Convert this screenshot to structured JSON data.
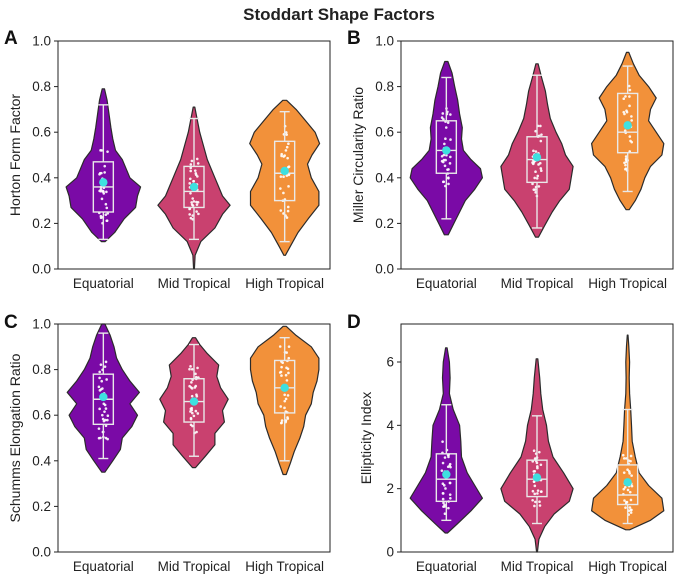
{
  "colors": {
    "Equatorial": "#7a0aa6",
    "Mid Tropical": "#c9416f",
    "High Tropical": "#f2913a",
    "mean": "#3ee0e0",
    "box": "#e9e9e9"
  },
  "chart_data": {
    "type": "violin",
    "title": "Stoddart Shape Factors",
    "panels": [
      {
        "letter": "A",
        "ylabel": "Horton Form Factor",
        "ylim": [
          0.0,
          1.0
        ],
        "yticks": [
          0.0,
          0.2,
          0.4,
          0.6,
          0.8,
          1.0
        ],
        "ytick_labels": [
          "0.0",
          "0.2",
          "0.4",
          "0.6",
          "0.8",
          "1.0"
        ],
        "categories": [
          "Equatorial",
          "Mid Tropical",
          "High Tropical"
        ],
        "series": [
          {
            "name": "Equatorial",
            "mean": 0.38,
            "q1": 0.25,
            "median": 0.36,
            "q3": 0.47,
            "whisker_low": 0.13,
            "whisker_high": 0.72,
            "violin_min": 0.12,
            "violin_max": 0.79,
            "profile": [
              [
                0.12,
                0.05
              ],
              [
                0.16,
                0.3
              ],
              [
                0.22,
                0.55
              ],
              [
                0.27,
                0.85
              ],
              [
                0.32,
                0.9
              ],
              [
                0.36,
                0.98
              ],
              [
                0.4,
                0.7
              ],
              [
                0.44,
                0.6
              ],
              [
                0.48,
                0.5
              ],
              [
                0.52,
                0.32
              ],
              [
                0.57,
                0.25
              ],
              [
                0.62,
                0.2
              ],
              [
                0.68,
                0.15
              ],
              [
                0.74,
                0.1
              ],
              [
                0.79,
                0.03
              ]
            ]
          },
          {
            "name": "Mid Tropical",
            "mean": 0.36,
            "q1": 0.27,
            "median": 0.34,
            "q3": 0.45,
            "whisker_low": 0.13,
            "whisker_high": 0.66,
            "violin_min": 0.0,
            "violin_max": 0.71,
            "profile": [
              [
                0.0,
                0.01
              ],
              [
                0.06,
                0.03
              ],
              [
                0.12,
                0.18
              ],
              [
                0.18,
                0.55
              ],
              [
                0.24,
                0.75
              ],
              [
                0.28,
                0.95
              ],
              [
                0.32,
                0.75
              ],
              [
                0.36,
                0.65
              ],
              [
                0.4,
                0.55
              ],
              [
                0.44,
                0.45
              ],
              [
                0.48,
                0.35
              ],
              [
                0.54,
                0.25
              ],
              [
                0.6,
                0.15
              ],
              [
                0.66,
                0.08
              ],
              [
                0.71,
                0.02
              ]
            ]
          },
          {
            "name": "High Tropical",
            "mean": 0.43,
            "q1": 0.3,
            "median": 0.42,
            "q3": 0.56,
            "whisker_low": 0.12,
            "whisker_high": 0.69,
            "violin_min": 0.06,
            "violin_max": 0.74,
            "profile": [
              [
                0.06,
                0.02
              ],
              [
                0.1,
                0.15
              ],
              [
                0.16,
                0.35
              ],
              [
                0.22,
                0.62
              ],
              [
                0.28,
                0.9
              ],
              [
                0.34,
                0.9
              ],
              [
                0.4,
                0.7
              ],
              [
                0.46,
                0.6
              ],
              [
                0.5,
                0.72
              ],
              [
                0.55,
                0.92
              ],
              [
                0.6,
                0.8
              ],
              [
                0.65,
                0.55
              ],
              [
                0.7,
                0.3
              ],
              [
                0.74,
                0.05
              ]
            ]
          }
        ]
      },
      {
        "letter": "B",
        "ylabel": "Miller Circularity Ratio",
        "ylim": [
          0.0,
          1.0
        ],
        "yticks": [
          0.0,
          0.2,
          0.4,
          0.6,
          0.8,
          1.0
        ],
        "ytick_labels": [
          "0.0",
          "0.2",
          "0.4",
          "0.6",
          "0.8",
          "1.0"
        ],
        "categories": [
          "Equatorial",
          "Mid Tropical",
          "High Tropical"
        ],
        "series": [
          {
            "name": "Equatorial",
            "mean": 0.52,
            "q1": 0.42,
            "median": 0.52,
            "q3": 0.65,
            "whisker_low": 0.22,
            "whisker_high": 0.84,
            "violin_min": 0.15,
            "violin_max": 0.91,
            "profile": [
              [
                0.15,
                0.05
              ],
              [
                0.2,
                0.2
              ],
              [
                0.25,
                0.35
              ],
              [
                0.3,
                0.5
              ],
              [
                0.35,
                0.75
              ],
              [
                0.4,
                0.95
              ],
              [
                0.44,
                0.9
              ],
              [
                0.48,
                0.65
              ],
              [
                0.52,
                0.45
              ],
              [
                0.57,
                0.4
              ],
              [
                0.62,
                0.42
              ],
              [
                0.68,
                0.35
              ],
              [
                0.74,
                0.3
              ],
              [
                0.8,
                0.22
              ],
              [
                0.86,
                0.15
              ],
              [
                0.91,
                0.04
              ]
            ]
          },
          {
            "name": "Mid Tropical",
            "mean": 0.49,
            "q1": 0.38,
            "median": 0.48,
            "q3": 0.58,
            "whisker_low": 0.18,
            "whisker_high": 0.85,
            "violin_min": 0.14,
            "violin_max": 0.9,
            "profile": [
              [
                0.14,
                0.04
              ],
              [
                0.19,
                0.2
              ],
              [
                0.25,
                0.4
              ],
              [
                0.3,
                0.6
              ],
              [
                0.35,
                0.85
              ],
              [
                0.4,
                0.9
              ],
              [
                0.45,
                0.95
              ],
              [
                0.5,
                0.75
              ],
              [
                0.55,
                0.65
              ],
              [
                0.6,
                0.5
              ],
              [
                0.66,
                0.35
              ],
              [
                0.72,
                0.28
              ],
              [
                0.78,
                0.22
              ],
              [
                0.84,
                0.12
              ],
              [
                0.9,
                0.03
              ]
            ]
          },
          {
            "name": "High Tropical",
            "mean": 0.63,
            "q1": 0.51,
            "median": 0.6,
            "q3": 0.77,
            "whisker_low": 0.34,
            "whisker_high": 0.89,
            "violin_min": 0.26,
            "violin_max": 0.95,
            "profile": [
              [
                0.26,
                0.04
              ],
              [
                0.3,
                0.2
              ],
              [
                0.35,
                0.35
              ],
              [
                0.4,
                0.45
              ],
              [
                0.45,
                0.6
              ],
              [
                0.5,
                0.9
              ],
              [
                0.55,
                0.95
              ],
              [
                0.6,
                0.75
              ],
              [
                0.65,
                0.55
              ],
              [
                0.7,
                0.6
              ],
              [
                0.75,
                0.75
              ],
              [
                0.8,
                0.55
              ],
              [
                0.85,
                0.3
              ],
              [
                0.9,
                0.15
              ],
              [
                0.95,
                0.03
              ]
            ]
          }
        ]
      },
      {
        "letter": "C",
        "ylabel": "Schumms Elongation Ratio",
        "ylim": [
          0.0,
          1.0
        ],
        "yticks": [
          0.0,
          0.2,
          0.4,
          0.6,
          0.8,
          1.0
        ],
        "ytick_labels": [
          "0.0",
          "0.2",
          "0.4",
          "0.6",
          "0.8",
          "1.0"
        ],
        "categories": [
          "Equatorial",
          "Mid Tropical",
          "High Tropical"
        ],
        "series": [
          {
            "name": "Equatorial",
            "mean": 0.68,
            "q1": 0.56,
            "median": 0.67,
            "q3": 0.78,
            "whisker_low": 0.41,
            "whisker_high": 0.96,
            "violin_min": 0.35,
            "violin_max": 1.0,
            "profile": [
              [
                0.35,
                0.04
              ],
              [
                0.4,
                0.25
              ],
              [
                0.45,
                0.45
              ],
              [
                0.5,
                0.5
              ],
              [
                0.55,
                0.75
              ],
              [
                0.6,
                0.9
              ],
              [
                0.65,
                0.7
              ],
              [
                0.7,
                0.95
              ],
              [
                0.75,
                0.7
              ],
              [
                0.8,
                0.5
              ],
              [
                0.85,
                0.35
              ],
              [
                0.9,
                0.28
              ],
              [
                0.95,
                0.18
              ],
              [
                1.0,
                0.04
              ]
            ]
          },
          {
            "name": "Mid Tropical",
            "mean": 0.66,
            "q1": 0.57,
            "median": 0.66,
            "q3": 0.76,
            "whisker_low": 0.42,
            "whisker_high": 0.91,
            "violin_min": 0.37,
            "violin_max": 0.94,
            "profile": [
              [
                0.37,
                0.04
              ],
              [
                0.42,
                0.3
              ],
              [
                0.47,
                0.55
              ],
              [
                0.52,
                0.55
              ],
              [
                0.57,
                0.8
              ],
              [
                0.62,
                0.75
              ],
              [
                0.67,
                0.9
              ],
              [
                0.72,
                0.7
              ],
              [
                0.77,
                0.6
              ],
              [
                0.82,
                0.65
              ],
              [
                0.87,
                0.35
              ],
              [
                0.91,
                0.15
              ],
              [
                0.94,
                0.04
              ]
            ]
          },
          {
            "name": "High Tropical",
            "mean": 0.72,
            "q1": 0.61,
            "median": 0.72,
            "q3": 0.84,
            "whisker_low": 0.4,
            "whisker_high": 0.94,
            "violin_min": 0.34,
            "violin_max": 0.99,
            "profile": [
              [
                0.34,
                0.04
              ],
              [
                0.39,
                0.15
              ],
              [
                0.44,
                0.25
              ],
              [
                0.5,
                0.4
              ],
              [
                0.55,
                0.5
              ],
              [
                0.6,
                0.55
              ],
              [
                0.65,
                0.7
              ],
              [
                0.7,
                0.75
              ],
              [
                0.75,
                0.85
              ],
              [
                0.8,
                0.9
              ],
              [
                0.85,
                0.9
              ],
              [
                0.9,
                0.7
              ],
              [
                0.95,
                0.3
              ],
              [
                0.99,
                0.04
              ]
            ]
          }
        ]
      },
      {
        "letter": "D",
        "ylabel": "Ellipticity Index",
        "ylim": [
          0.0,
          7.2
        ],
        "yticks": [
          0,
          2,
          4,
          6
        ],
        "ytick_labels": [
          "0",
          "2",
          "4",
          "6"
        ],
        "categories": [
          "Equatorial",
          "Mid Tropical",
          "High Tropical"
        ],
        "series": [
          {
            "name": "Equatorial",
            "mean": 2.45,
            "q1": 1.6,
            "median": 2.3,
            "q3": 3.1,
            "whisker_low": 1.0,
            "whisker_high": 4.65,
            "violin_min": 0.6,
            "violin_max": 6.45,
            "profile": [
              [
                0.6,
                0.03
              ],
              [
                0.9,
                0.3
              ],
              [
                1.3,
                0.65
              ],
              [
                1.7,
                0.95
              ],
              [
                2.1,
                0.75
              ],
              [
                2.5,
                0.55
              ],
              [
                3.0,
                0.4
              ],
              [
                3.5,
                0.38
              ],
              [
                4.0,
                0.35
              ],
              [
                4.5,
                0.18
              ],
              [
                5.0,
                0.08
              ],
              [
                5.5,
                0.1
              ],
              [
                6.0,
                0.08
              ],
              [
                6.45,
                0.02
              ]
            ]
          },
          {
            "name": "Mid Tropical",
            "mean": 2.35,
            "q1": 1.75,
            "median": 2.3,
            "q3": 2.9,
            "whisker_low": 0.9,
            "whisker_high": 4.3,
            "violin_min": 0.0,
            "violin_max": 6.1,
            "profile": [
              [
                0.0,
                0.01
              ],
              [
                0.4,
                0.05
              ],
              [
                0.8,
                0.2
              ],
              [
                1.2,
                0.45
              ],
              [
                1.6,
                0.85
              ],
              [
                2.0,
                0.95
              ],
              [
                2.5,
                0.7
              ],
              [
                3.0,
                0.42
              ],
              [
                3.5,
                0.3
              ],
              [
                4.0,
                0.25
              ],
              [
                4.5,
                0.15
              ],
              [
                5.0,
                0.1
              ],
              [
                5.5,
                0.07
              ],
              [
                6.1,
                0.02
              ]
            ]
          },
          {
            "name": "High Tropical",
            "mean": 2.2,
            "q1": 1.5,
            "median": 1.8,
            "q3": 2.75,
            "whisker_low": 0.9,
            "whisker_high": 4.5,
            "violin_min": 0.7,
            "violin_max": 6.85,
            "profile": [
              [
                0.7,
                0.05
              ],
              [
                1.0,
                0.6
              ],
              [
                1.3,
                0.95
              ],
              [
                1.7,
                0.9
              ],
              [
                2.1,
                0.55
              ],
              [
                2.5,
                0.3
              ],
              [
                3.0,
                0.2
              ],
              [
                3.5,
                0.12
              ],
              [
                4.0,
                0.1
              ],
              [
                4.5,
                0.08
              ],
              [
                5.0,
                0.05
              ],
              [
                5.5,
                0.04
              ],
              [
                6.0,
                0.05
              ],
              [
                6.5,
                0.03
              ],
              [
                6.85,
                0.01
              ]
            ]
          }
        ]
      }
    ]
  }
}
